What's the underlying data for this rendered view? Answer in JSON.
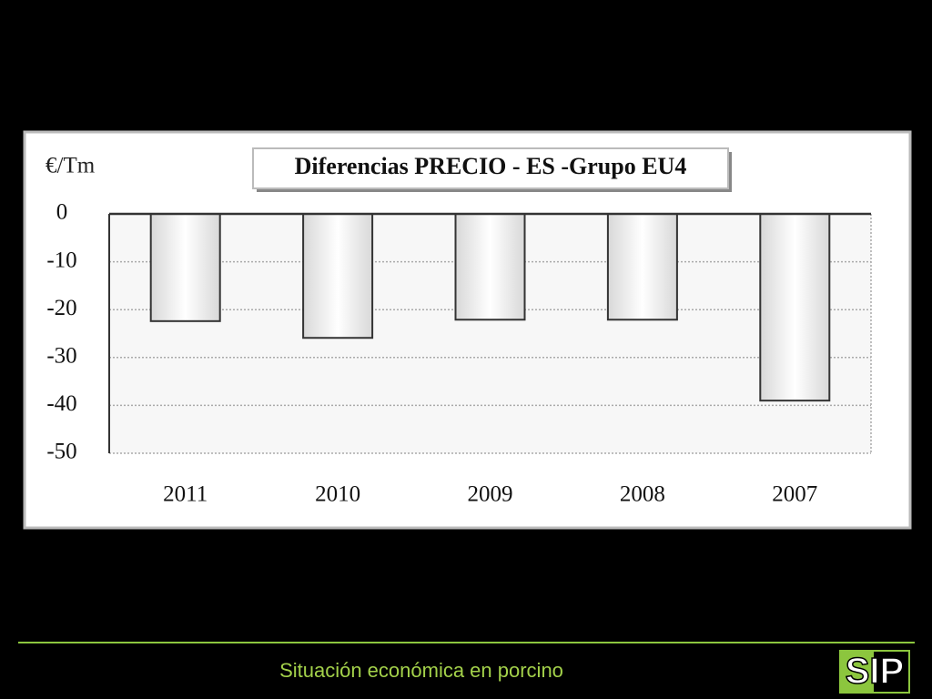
{
  "chart_data": {
    "type": "bar",
    "title": "Diferencias PRECIO - ES -Grupo EU4",
    "y_label": "€/Tm",
    "categories": [
      "2011",
      "2010",
      "2009",
      "2008",
      "2007"
    ],
    "values": [
      -22.4,
      -25.9,
      -22.1,
      -22.1,
      -39
    ],
    "color": "#d4d4d4",
    "ylim": [
      -50,
      0
    ],
    "yticks": [
      0,
      -10,
      -20,
      -30,
      -40,
      -50
    ],
    "grid": true
  },
  "footer": {
    "text": "Situación económica en porcino",
    "logo": "SIP"
  }
}
